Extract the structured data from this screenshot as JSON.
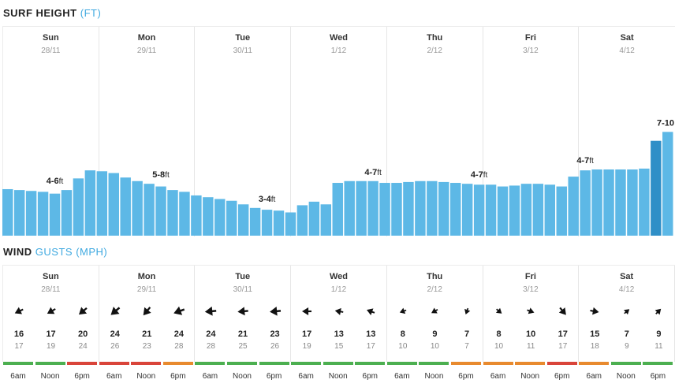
{
  "surf": {
    "title": "SURF HEIGHT",
    "unit": "(FT)",
    "bar_color": "#5db8e6",
    "bar_highlight_color": "#2f8fc7",
    "heights": [
      2.6,
      2.55,
      2.5,
      2.45,
      2.35,
      2.55,
      3.2,
      3.65,
      3.6,
      3.5,
      3.25,
      3.05,
      2.9,
      2.75,
      2.55,
      2.45,
      2.25,
      2.15,
      2.05,
      1.95,
      1.75,
      1.55,
      1.45,
      1.4,
      1.3,
      1.7,
      1.9,
      1.75,
      2.95,
      3.05,
      3.05,
      3.05,
      2.95,
      2.95,
      3.0,
      3.05,
      3.05,
      3.0,
      2.95,
      2.9,
      2.85,
      2.85,
      2.75,
      2.8,
      2.9,
      2.9,
      2.85,
      2.75,
      3.3,
      3.65,
      3.7,
      3.7,
      3.7,
      3.7,
      3.75,
      5.3,
      5.8
    ],
    "highlight_index": 55,
    "labels": [
      {
        "text": "4-6",
        "unit": "ft",
        "index": 4
      },
      {
        "text": "5-8",
        "unit": "ft",
        "index": 13
      },
      {
        "text": "3-4",
        "unit": "ft",
        "index": 22
      },
      {
        "text": "4-7",
        "unit": "ft",
        "index": 31
      },
      {
        "text": "4-7",
        "unit": "ft",
        "index": 40
      },
      {
        "text": "4-7",
        "unit": "ft",
        "index": 49
      },
      {
        "text": "7-10",
        "unit": "ft",
        "index": 57
      }
    ]
  },
  "days": [
    {
      "name": "Sun",
      "date": "28/11"
    },
    {
      "name": "Mon",
      "date": "29/11"
    },
    {
      "name": "Tue",
      "date": "30/11"
    },
    {
      "name": "Wed",
      "date": "1/12"
    },
    {
      "name": "Thu",
      "date": "2/12"
    },
    {
      "name": "Fri",
      "date": "3/12"
    },
    {
      "name": "Sat",
      "date": "4/12"
    }
  ],
  "wind": {
    "title": "WIND",
    "subtitle": "GUSTS",
    "unit": "(MPH)",
    "entries": [
      {
        "speed": "16",
        "gust": "17",
        "dir": 245,
        "rating": "green",
        "time": "6am"
      },
      {
        "speed": "17",
        "gust": "19",
        "dir": 240,
        "rating": "green",
        "time": "Noon"
      },
      {
        "speed": "20",
        "gust": "24",
        "dir": 230,
        "rating": "red",
        "time": "6pm"
      },
      {
        "speed": "24",
        "gust": "26",
        "dir": 230,
        "rating": "red",
        "time": "6am"
      },
      {
        "speed": "21",
        "gust": "23",
        "dir": 220,
        "rating": "red",
        "time": "Noon"
      },
      {
        "speed": "24",
        "gust": "28",
        "dir": 250,
        "rating": "orange",
        "time": "6pm"
      },
      {
        "speed": "24",
        "gust": "28",
        "dir": 265,
        "rating": "green",
        "time": "6am"
      },
      {
        "speed": "21",
        "gust": "25",
        "dir": 265,
        "rating": "green",
        "time": "Noon"
      },
      {
        "speed": "23",
        "gust": "26",
        "dir": 265,
        "rating": "green",
        "time": "6pm"
      },
      {
        "speed": "17",
        "gust": "19",
        "dir": 270,
        "rating": "green",
        "time": "6am"
      },
      {
        "speed": "13",
        "gust": "15",
        "dir": 280,
        "rating": "green",
        "time": "Noon"
      },
      {
        "speed": "13",
        "gust": "17",
        "dir": 290,
        "rating": "green",
        "time": "6pm"
      },
      {
        "speed": "8",
        "gust": "10",
        "dir": 250,
        "rating": "green",
        "time": "6am"
      },
      {
        "speed": "9",
        "gust": "10",
        "dir": 240,
        "rating": "green",
        "time": "Noon"
      },
      {
        "speed": "7",
        "gust": "7",
        "dir": 200,
        "rating": "orange",
        "time": "6pm"
      },
      {
        "speed": "8",
        "gust": "10",
        "dir": 130,
        "rating": "orange",
        "time": "6am"
      },
      {
        "speed": "10",
        "gust": "11",
        "dir": 110,
        "rating": "orange",
        "time": "Noon"
      },
      {
        "speed": "17",
        "gust": "17",
        "dir": 140,
        "rating": "red",
        "time": "6pm"
      },
      {
        "speed": "15",
        "gust": "18",
        "dir": 100,
        "rating": "orange",
        "time": "6am"
      },
      {
        "speed": "7",
        "gust": "9",
        "dir": 50,
        "rating": "green",
        "time": "Noon"
      },
      {
        "speed": "9",
        "gust": "11",
        "dir": 45,
        "rating": "green",
        "time": "6pm"
      }
    ]
  },
  "rating_colors": {
    "green": "#4caf50",
    "orange": "#e88a2e",
    "red": "#d9443a"
  }
}
